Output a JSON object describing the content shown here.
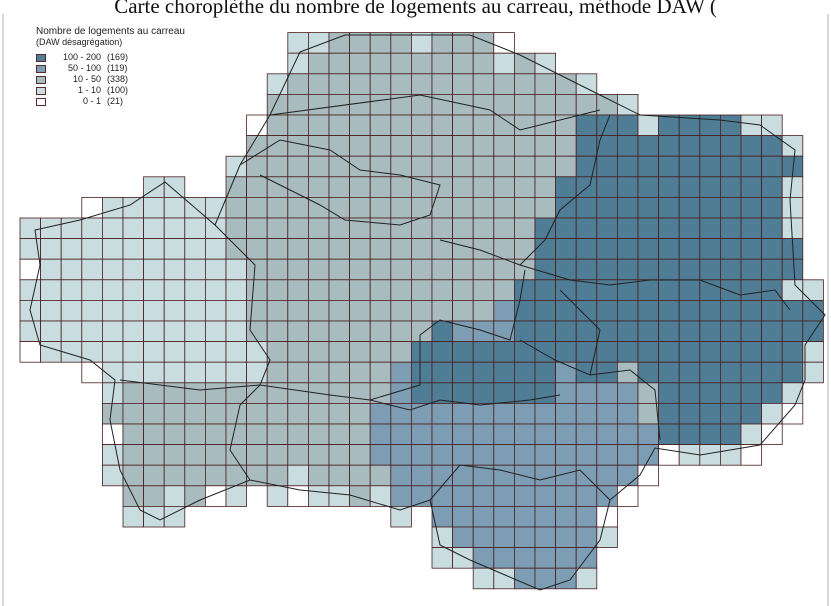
{
  "caption": "Carte choroplèthe du nombre de logements au carreau, méthode DAW (",
  "legend": {
    "title": "Nombre de logements au carreau",
    "subtitle": "(DAW désagrégation)",
    "classes": [
      {
        "range": "100 - 200",
        "count": "(169)",
        "color": "#4e7d95"
      },
      {
        "range": "50 - 100",
        "count": "(119)",
        "color": "#7c9db4"
      },
      {
        "range": "10 - 50",
        "count": "(338)",
        "color": "#a8bcbf"
      },
      {
        "range": "1 - 10",
        "count": "(100)",
        "color": "#c9dde0"
      },
      {
        "range": "0 - 1",
        "count": "(21)",
        "color": "#ffffff"
      }
    ]
  }
}
